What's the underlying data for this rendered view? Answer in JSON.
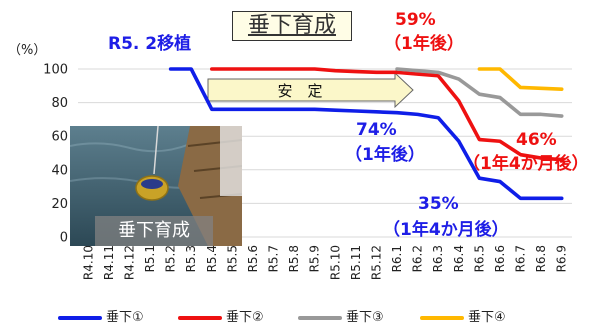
{
  "chart_data": {
    "type": "line",
    "title": "垂下育成",
    "y_unit": "（%）",
    "ylim": [
      0,
      100
    ],
    "yticks": [
      0,
      20,
      40,
      60,
      80,
      100
    ],
    "categories": [
      "R4.10",
      "R4.11",
      "R4.12",
      "R5.1",
      "R5.2",
      "R5.3",
      "R5.4",
      "R5.5",
      "R5.6",
      "R5.7",
      "R5.8",
      "R5.9",
      "R5.10",
      "R5.11",
      "R5.12",
      "R6.1",
      "R6.2",
      "R6.3",
      "R6.4",
      "R6.5",
      "R6.6",
      "R6.7",
      "R6.8",
      "R6.9"
    ],
    "grid": "horizontal",
    "legend_position": "bottom",
    "series": [
      {
        "name": "垂下①",
        "color": "#0f1ee8",
        "values": [
          null,
          null,
          null,
          null,
          100,
          100,
          76,
          76,
          76,
          76,
          76,
          76,
          75.5,
          75,
          74.5,
          74,
          73,
          71,
          57,
          35,
          33,
          23,
          23,
          23
        ]
      },
      {
        "name": "垂下②",
        "color": "#ee1111",
        "values": [
          null,
          null,
          null,
          null,
          null,
          null,
          100,
          100,
          100,
          100,
          100,
          100,
          99,
          98.5,
          98,
          98,
          97,
          96,
          81,
          58,
          57,
          49,
          47,
          46
        ]
      },
      {
        "name": "垂下③",
        "color": "#999999",
        "values": [
          null,
          null,
          null,
          null,
          null,
          null,
          null,
          null,
          null,
          null,
          null,
          null,
          null,
          null,
          null,
          100,
          99,
          98,
          94,
          85,
          83,
          73,
          73,
          72
        ]
      },
      {
        "name": "垂下④",
        "color": "#ffb800",
        "values": [
          null,
          null,
          null,
          null,
          null,
          null,
          null,
          null,
          null,
          null,
          null,
          null,
          null,
          null,
          null,
          null,
          null,
          null,
          null,
          100,
          100,
          89,
          88.5,
          88
        ]
      }
    ],
    "annotations": {
      "transplant": "R5. 2移植",
      "stable": "安　定",
      "s2_1yr_pct": "59%",
      "s2_1yr_label": "（1年後）",
      "s2_16m_pct": "46%",
      "s2_16m_label": "（1年4か月後）",
      "s1_1yr_pct": "74%",
      "s1_1yr_label": "（1年後）",
      "s1_16m_pct": "35%",
      "s1_16m_label": "（1年4か月後）"
    },
    "photo_label": "垂下育成"
  }
}
